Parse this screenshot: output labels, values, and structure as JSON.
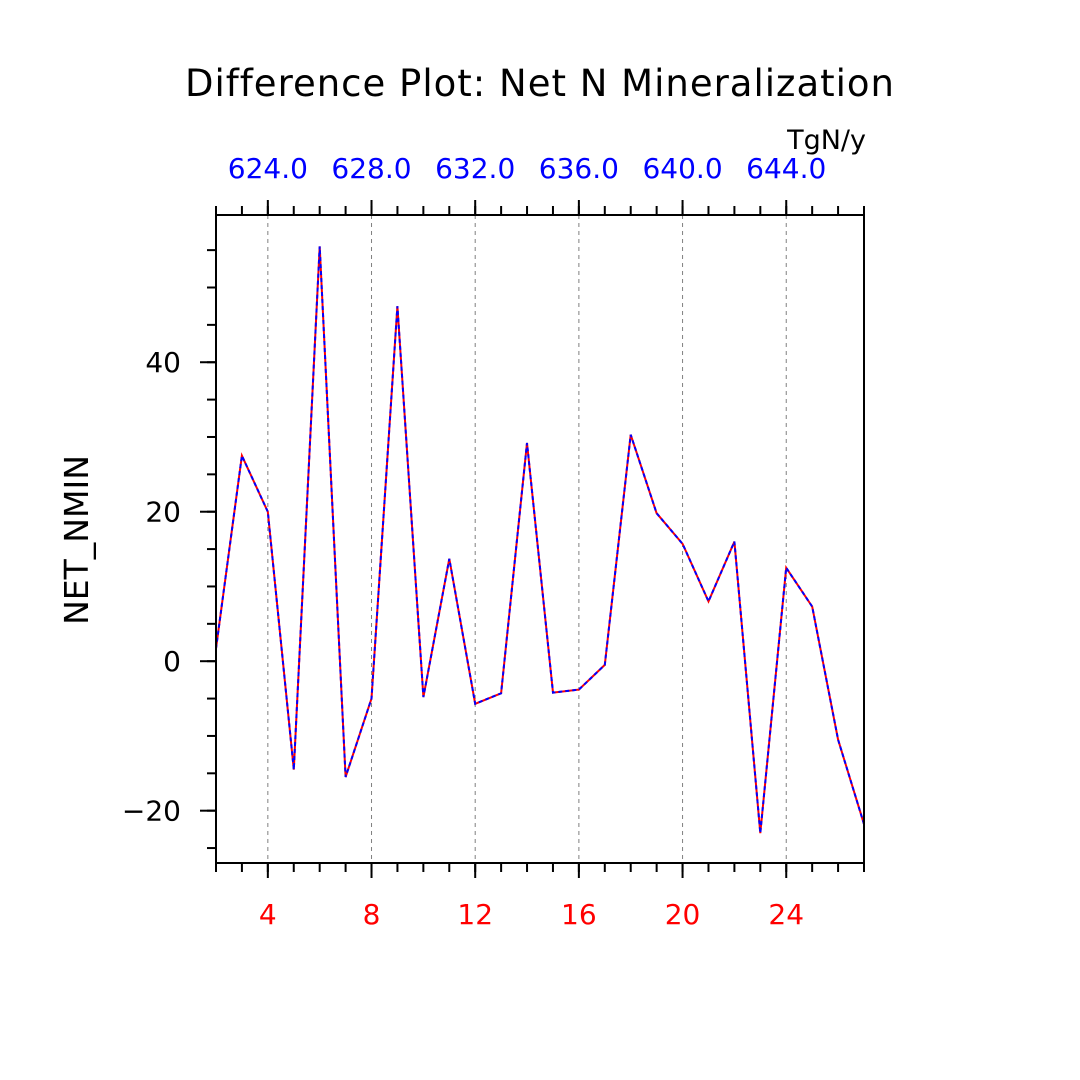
{
  "chart_data": {
    "type": "line",
    "title": "Difference Plot: Net N Mineralization",
    "units": "TgN/y",
    "ylabel": "NET_NMIN",
    "xlabel": "",
    "xlim": [
      2,
      27
    ],
    "ylim": [
      -27,
      59.7
    ],
    "x_ticks_bottom": [
      4,
      8,
      12,
      16,
      20,
      24
    ],
    "x_tick_labels_bottom": [
      "4",
      "8",
      "12",
      "16",
      "20",
      "24"
    ],
    "x_ticks_top": [
      4,
      8,
      12,
      16,
      20,
      24
    ],
    "x_tick_labels_top": [
      "624.0",
      "628.0",
      "632.0",
      "636.0",
      "640.0",
      "644.0"
    ],
    "y_ticks": [
      -20,
      0,
      20,
      40
    ],
    "y_tick_labels": [
      "−20",
      "0",
      "20",
      "40"
    ],
    "grid": "vertical dashed at major x ticks",
    "colors": {
      "bottom_axis_labels": "#ff0000",
      "top_axis_labels": "#0000ff",
      "series_a": "#ff0000",
      "series_b": "#0000ff"
    },
    "x": [
      2,
      3,
      4,
      5,
      6,
      7,
      8,
      9,
      10,
      11,
      12,
      13,
      14,
      15,
      16,
      17,
      18,
      19,
      20,
      21,
      22,
      23,
      24,
      25,
      26,
      27
    ],
    "series": [
      {
        "name": "red",
        "color": "#ff0000",
        "values": [
          1.7,
          27.5,
          20.0,
          -14.5,
          55.5,
          -15.5,
          -5.0,
          47.5,
          -4.8,
          13.7,
          -5.7,
          -4.3,
          29.2,
          -4.2,
          -3.8,
          -0.5,
          30.3,
          19.8,
          15.7,
          8.0,
          16.0,
          -23.0,
          12.5,
          7.3,
          -10.5,
          -21.8
        ]
      },
      {
        "name": "blue",
        "color": "#0000ff",
        "values": [
          1.7,
          27.5,
          20.0,
          -14.5,
          55.5,
          -15.5,
          -5.0,
          47.5,
          -4.8,
          13.7,
          -5.7,
          -4.3,
          29.2,
          -4.2,
          -3.8,
          -0.5,
          30.3,
          19.8,
          15.7,
          8.0,
          16.0,
          -23.0,
          12.5,
          7.3,
          -10.5,
          -21.8
        ]
      }
    ]
  }
}
